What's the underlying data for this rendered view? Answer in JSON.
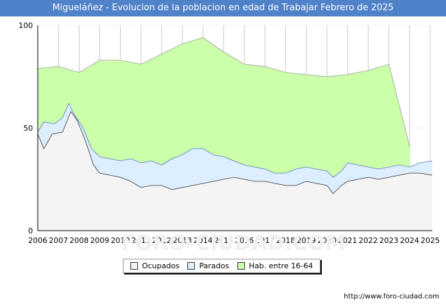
{
  "title": "Migueláñez - Evolucion de la poblacion en edad de Trabajar Febrero de 2025",
  "footer_url": "http://www.foro-ciudad.com",
  "chart_data": {
    "type": "area",
    "title": "Migueláñez - Evolucion de la poblacion en edad de Trabajar Febrero de 2025",
    "x_ticks": [
      "2006",
      "2007",
      "2008",
      "2009",
      "2010",
      "2011",
      "2012",
      "2013",
      "2014",
      "2015",
      "2016",
      "2017",
      "2018",
      "2019",
      "2020",
      "2021",
      "2022",
      "2023",
      "2024",
      "2025"
    ],
    "y_ticks": [
      "0",
      "50",
      "100"
    ],
    "ylim": [
      0,
      100
    ],
    "xlim": [
      2006,
      2025.1
    ],
    "series": [
      {
        "name": "Hab. entre 16-64",
        "color": "#ccffaa",
        "stroke": "#999999",
        "points": [
          [
            2006,
            79
          ],
          [
            2007,
            80
          ],
          [
            2008,
            77
          ],
          [
            2009,
            83
          ],
          [
            2010,
            83
          ],
          [
            2011,
            81
          ],
          [
            2012,
            86
          ],
          [
            2013,
            91
          ],
          [
            2014,
            94
          ],
          [
            2015,
            87
          ],
          [
            2016,
            81
          ],
          [
            2017,
            80
          ],
          [
            2018,
            77
          ],
          [
            2019,
            76
          ],
          [
            2020,
            75
          ],
          [
            2021,
            76
          ],
          [
            2022,
            78
          ],
          [
            2023,
            81
          ],
          [
            2024,
            41
          ]
        ]
      },
      {
        "name": "Parados",
        "color": "#ddeeff",
        "stroke": "#5577bb",
        "points": [
          [
            2006,
            48
          ],
          [
            2006.3,
            53
          ],
          [
            2006.8,
            52
          ],
          [
            2007.2,
            55
          ],
          [
            2007.5,
            62
          ],
          [
            2007.8,
            56
          ],
          [
            2008.2,
            50
          ],
          [
            2008.6,
            40
          ],
          [
            2009,
            36
          ],
          [
            2009.5,
            35
          ],
          [
            2010,
            34
          ],
          [
            2010.5,
            35
          ],
          [
            2011,
            33
          ],
          [
            2011.5,
            34
          ],
          [
            2012,
            32
          ],
          [
            2012.5,
            35
          ],
          [
            2013,
            37
          ],
          [
            2013.5,
            40
          ],
          [
            2014,
            40
          ],
          [
            2014.5,
            37
          ],
          [
            2015,
            36
          ],
          [
            2015.5,
            34
          ],
          [
            2016,
            32
          ],
          [
            2016.5,
            31
          ],
          [
            2017,
            30
          ],
          [
            2017.5,
            28
          ],
          [
            2018,
            28
          ],
          [
            2018.5,
            30
          ],
          [
            2019,
            31
          ],
          [
            2019.5,
            30
          ],
          [
            2020,
            29
          ],
          [
            2020.3,
            26
          ],
          [
            2020.7,
            29
          ],
          [
            2021,
            33
          ],
          [
            2021.5,
            32
          ],
          [
            2022,
            31
          ],
          [
            2022.5,
            30
          ],
          [
            2023,
            31
          ],
          [
            2023.5,
            32
          ],
          [
            2024,
            31
          ],
          [
            2024.5,
            33
          ],
          [
            2025.1,
            34
          ]
        ]
      },
      {
        "name": "Ocupados",
        "color": "#f4f4f4",
        "stroke": "#333333",
        "points": [
          [
            2006,
            47
          ],
          [
            2006.3,
            40
          ],
          [
            2006.7,
            47
          ],
          [
            2007.2,
            48
          ],
          [
            2007.6,
            58
          ],
          [
            2007.9,
            54
          ],
          [
            2008.3,
            44
          ],
          [
            2008.7,
            32
          ],
          [
            2009,
            28
          ],
          [
            2009.5,
            27
          ],
          [
            2010,
            26
          ],
          [
            2010.5,
            24
          ],
          [
            2011,
            21
          ],
          [
            2011.5,
            22
          ],
          [
            2012,
            22
          ],
          [
            2012.5,
            20
          ],
          [
            2013,
            21
          ],
          [
            2013.5,
            22
          ],
          [
            2014,
            23
          ],
          [
            2014.5,
            24
          ],
          [
            2015,
            25
          ],
          [
            2015.5,
            26
          ],
          [
            2016,
            25
          ],
          [
            2016.5,
            24
          ],
          [
            2017,
            24
          ],
          [
            2017.5,
            23
          ],
          [
            2018,
            22
          ],
          [
            2018.5,
            22
          ],
          [
            2019,
            24
          ],
          [
            2019.5,
            23
          ],
          [
            2020,
            22
          ],
          [
            2020.3,
            18
          ],
          [
            2020.7,
            22
          ],
          [
            2021,
            24
          ],
          [
            2021.5,
            25
          ],
          [
            2022,
            26
          ],
          [
            2022.5,
            25
          ],
          [
            2023,
            26
          ],
          [
            2023.5,
            27
          ],
          [
            2024,
            28
          ],
          [
            2024.5,
            28
          ],
          [
            2025.1,
            27
          ]
        ]
      }
    ],
    "legend": [
      "Ocupados",
      "Parados",
      "Hab. entre 16-64"
    ],
    "watermark": "FORO-CIUDAD.COM"
  }
}
